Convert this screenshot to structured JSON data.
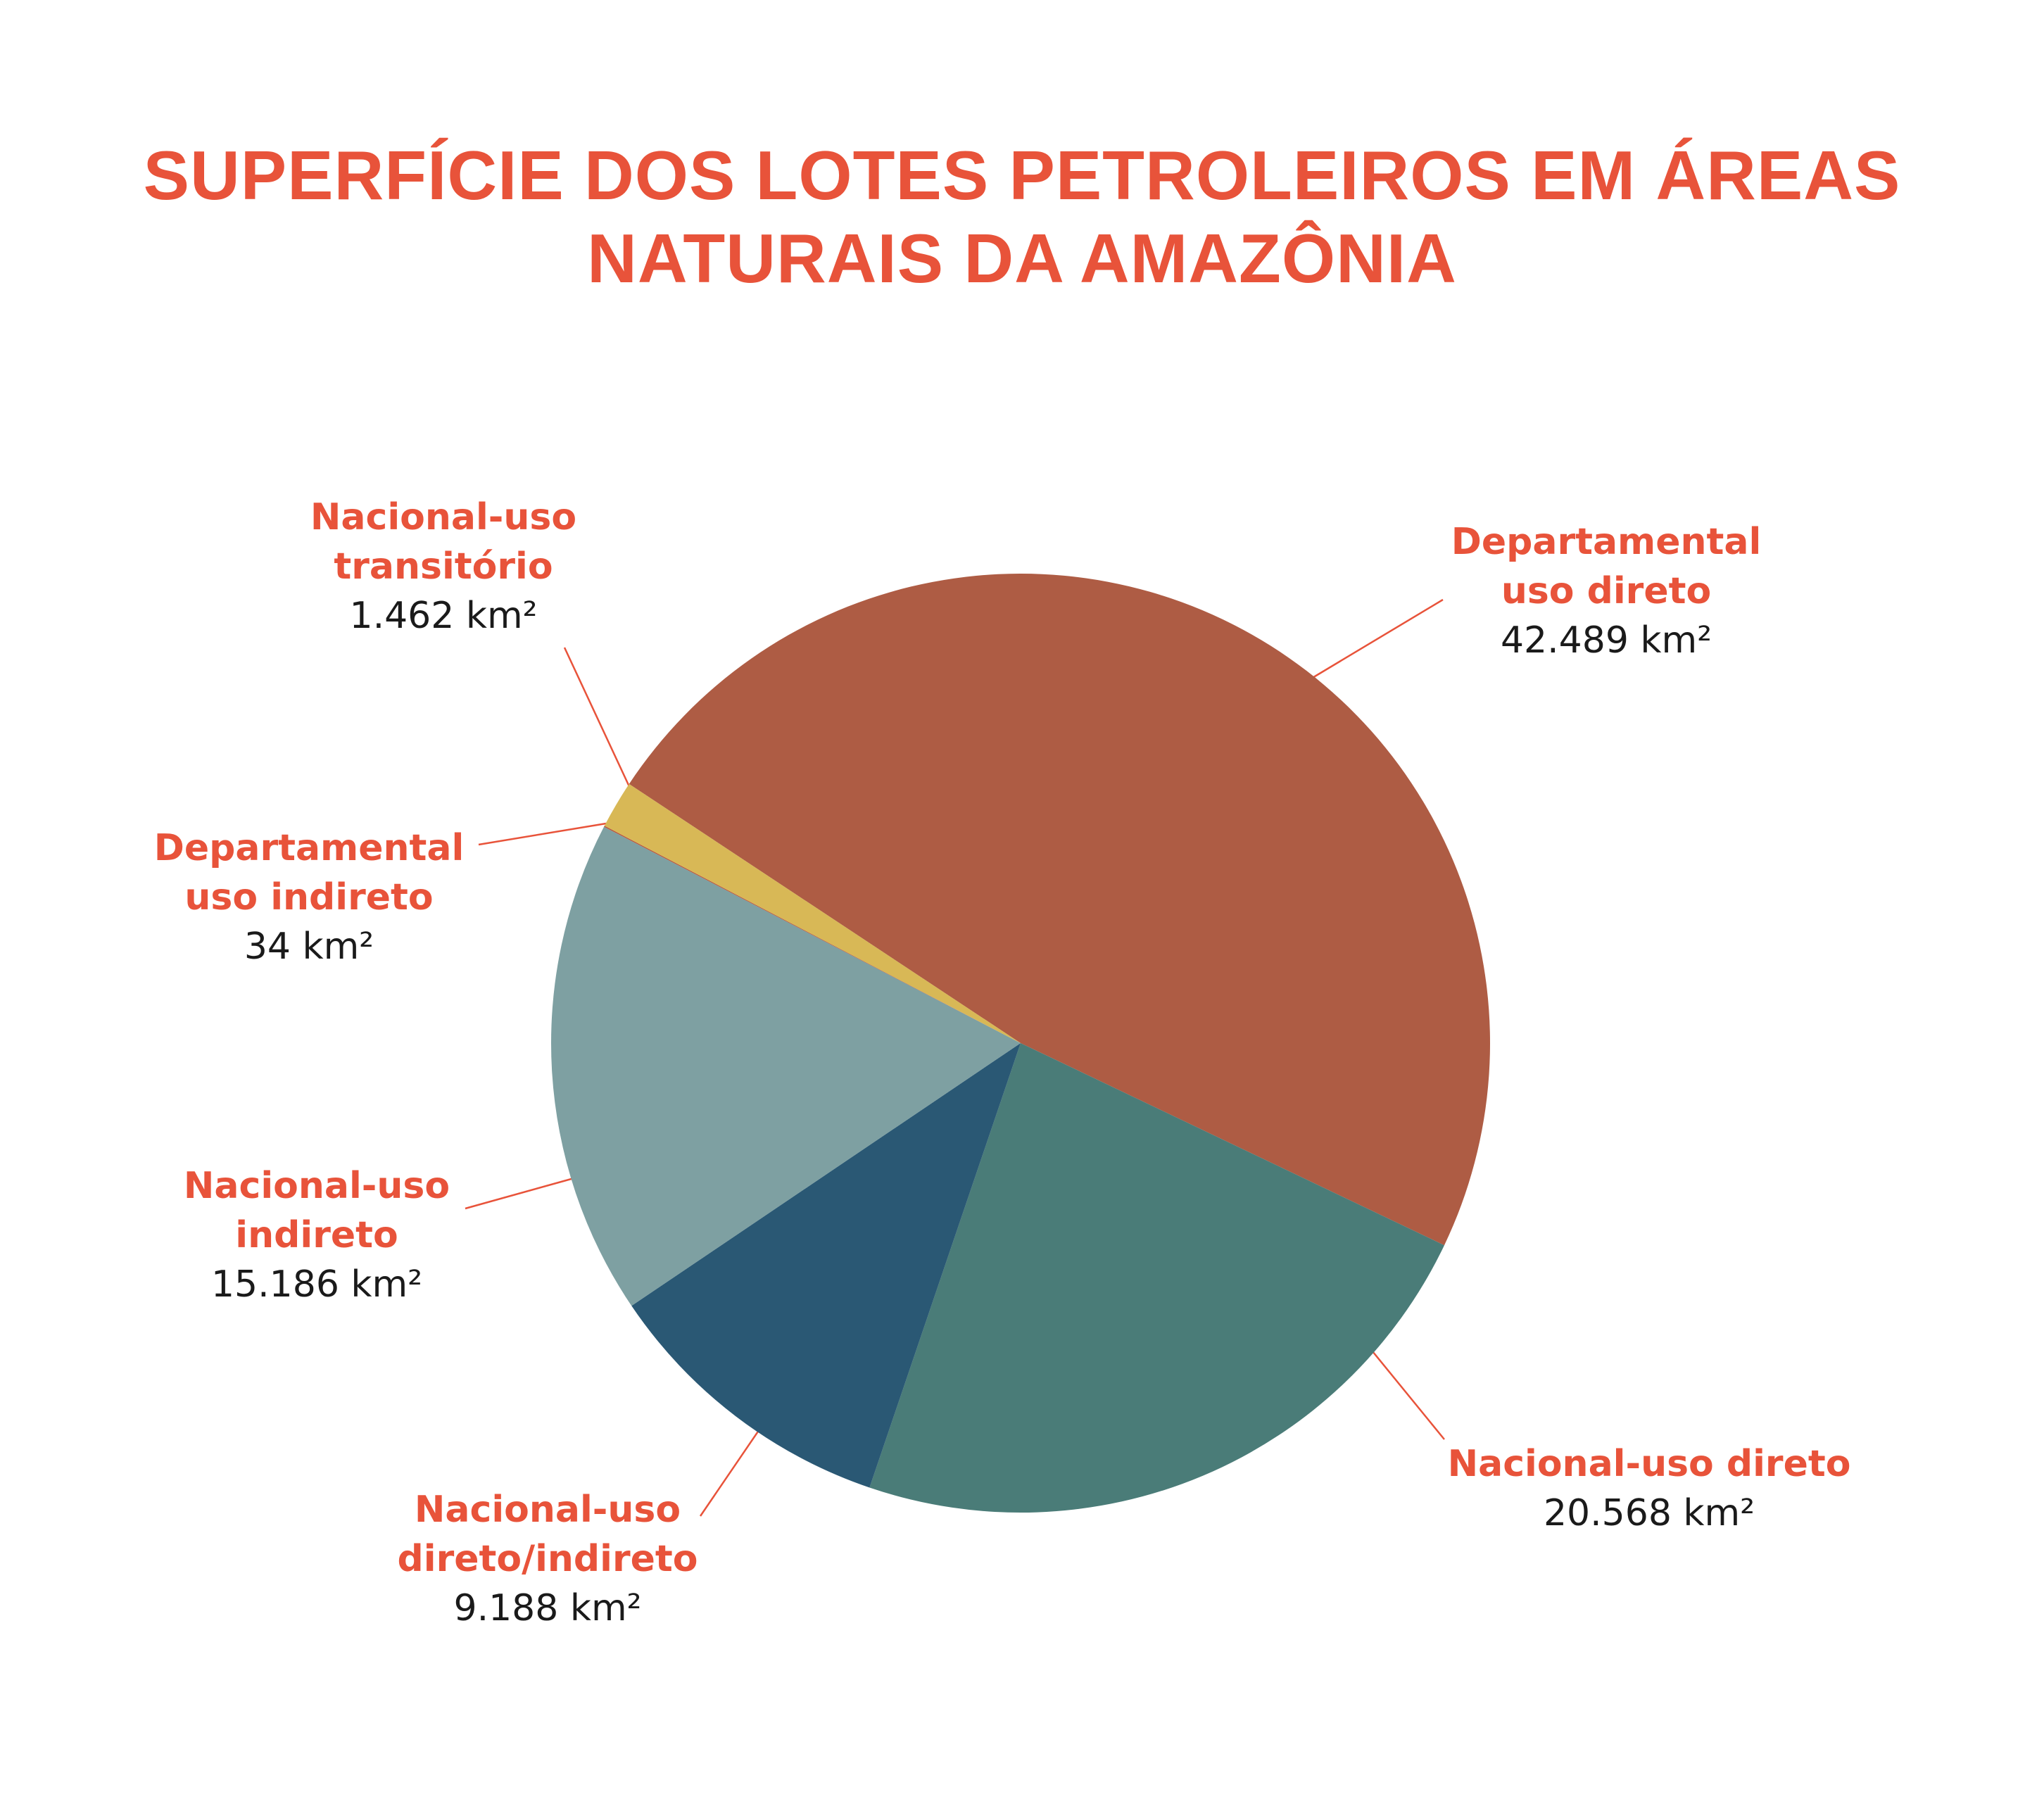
{
  "chart_data": {
    "type": "pie",
    "title": "SUPERFÍCIE DOS LOTES PETROLEIROS EM ÁREAS NATURAIS DA AMAZÔNIA",
    "categories": [
      "Departamental uso direto",
      "Nacional-uso direto",
      "Nacional-uso direto/indireto",
      "Nacional-uso indireto",
      "Departamental uso indireto",
      "Nacional-uso transitório"
    ],
    "values": [
      42489,
      20568,
      9188,
      15186,
      34,
      1462
    ],
    "value_labels": [
      "42.489 km²",
      "20.568 km²",
      "9.188 km²",
      "15.186 km²",
      "34 km²",
      "1.462 km²"
    ],
    "colors": [
      "#ae5c44",
      "#4a7c78",
      "#2a5874",
      "#7ea0a2",
      "#b8583c",
      "#d8b856"
    ]
  }
}
